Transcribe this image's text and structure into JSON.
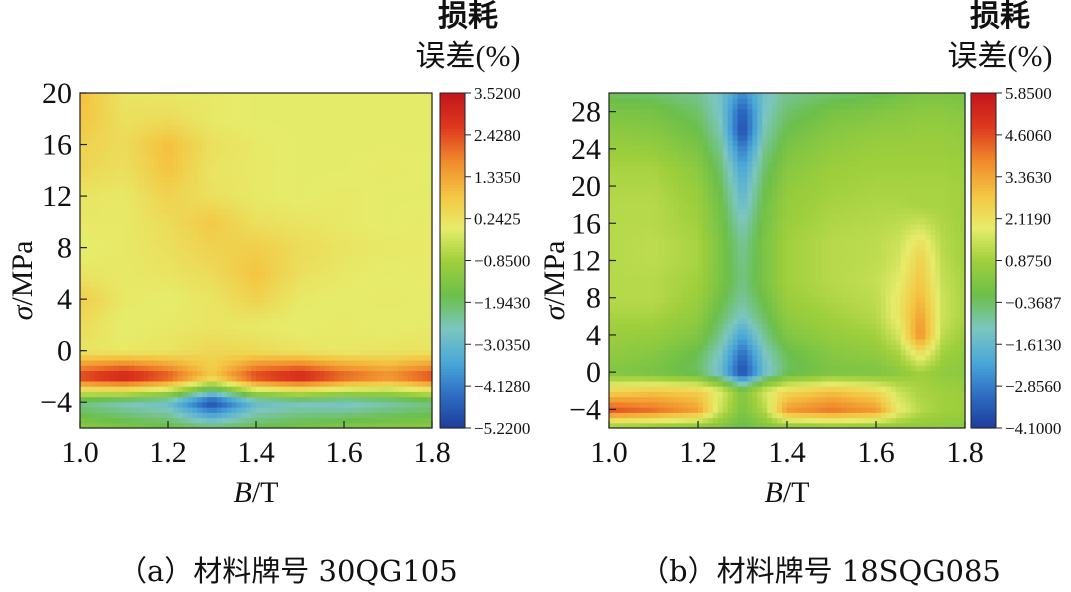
{
  "chart_data": [
    {
      "type": "heatmap",
      "title": "",
      "xlabel": "B/T",
      "ylabel": "σ/MPa",
      "xlim": [
        1.0,
        1.8
      ],
      "ylim": [
        -6,
        20
      ],
      "x_ticks": [
        "1.0",
        "1.2",
        "1.4",
        "1.6",
        "1.8"
      ],
      "y_ticks": [
        "20",
        "16",
        "12",
        "8",
        "4",
        "0",
        "−4"
      ],
      "colorbar": {
        "title_line1": "损耗",
        "title_line2": "误差(%)",
        "ticks": [
          "3.5200",
          "2.4280",
          "1.3350",
          "0.2425",
          "−0.8500",
          "−1.9430",
          "−3.0350",
          "−4.1280",
          "−5.2200"
        ],
        "range": [
          -5.22,
          3.52
        ]
      },
      "x": [
        1.0,
        1.1,
        1.2,
        1.3,
        1.4,
        1.5,
        1.6,
        1.7,
        1.8
      ],
      "y": [
        -6,
        -4,
        -2,
        0,
        2,
        4,
        6,
        8,
        10,
        12,
        14,
        16,
        18,
        20
      ],
      "z": [
        [
          -1.2,
          -1.4,
          -1.6,
          -1.9,
          -1.7,
          -1.5,
          -1.3,
          -1.2,
          -1.2
        ],
        [
          -2.2,
          -2.6,
          -2.9,
          -5.0,
          -3.0,
          -2.7,
          -2.8,
          -2.5,
          -2.2
        ],
        [
          2.7,
          3.4,
          2.5,
          0.8,
          2.7,
          3.3,
          2.4,
          1.8,
          2.6
        ],
        [
          0.2,
          0.1,
          0.2,
          0.5,
          0.4,
          0.2,
          0.1,
          0.2,
          0.2
        ],
        [
          0.4,
          0.0,
          0.1,
          0.2,
          0.1,
          0.0,
          0.1,
          0.0,
          0.1
        ],
        [
          0.7,
          0.1,
          0.0,
          0.2,
          0.6,
          0.1,
          0.0,
          0.1,
          0.0
        ],
        [
          0.2,
          0.1,
          0.2,
          0.4,
          0.9,
          0.3,
          0.1,
          0.0,
          0.1
        ],
        [
          0.0,
          0.1,
          0.3,
          0.6,
          0.7,
          0.4,
          0.2,
          0.1,
          0.1
        ],
        [
          0.1,
          0.1,
          0.4,
          0.8,
          0.3,
          0.2,
          0.1,
          0.0,
          0.1
        ],
        [
          0.2,
          0.1,
          0.6,
          0.3,
          0.1,
          0.0,
          0.1,
          0.0,
          0.0
        ],
        [
          0.5,
          0.3,
          0.9,
          0.2,
          0.1,
          0.0,
          0.0,
          0.1,
          0.0
        ],
        [
          0.6,
          0.4,
          1.0,
          0.3,
          0.1,
          0.0,
          0.0,
          0.0,
          0.0
        ],
        [
          0.9,
          0.3,
          0.4,
          0.1,
          0.0,
          0.0,
          0.0,
          0.0,
          0.0
        ],
        [
          1.0,
          0.2,
          0.1,
          0.1,
          0.0,
          0.0,
          0.0,
          0.0,
          0.0
        ]
      ]
    },
    {
      "type": "heatmap",
      "title": "",
      "xlabel": "B/T",
      "ylabel": "σ/MPa",
      "xlim": [
        1.0,
        1.8
      ],
      "ylim": [
        -6,
        30
      ],
      "x_ticks": [
        "1.0",
        "1.2",
        "1.4",
        "1.6",
        "1.8"
      ],
      "y_ticks": [
        "28",
        "24",
        "20",
        "16",
        "12",
        "8",
        "4",
        "0",
        "−4"
      ],
      "colorbar": {
        "title_line1": "损耗",
        "title_line2": "误差(%)",
        "ticks": [
          "5.8500",
          "4.6060",
          "3.3630",
          "2.1190",
          "0.8750",
          "−0.3687",
          "−1.6130",
          "−2.8560",
          "−4.1000"
        ],
        "range": [
          -4.1,
          5.85
        ]
      },
      "x": [
        1.0,
        1.1,
        1.2,
        1.25,
        1.3,
        1.35,
        1.4,
        1.5,
        1.6,
        1.65,
        1.7,
        1.75,
        1.8
      ],
      "y": [
        -6,
        -4,
        -2,
        0,
        2,
        4,
        6,
        8,
        10,
        12,
        14,
        16,
        18,
        20,
        22,
        24,
        26,
        28,
        30
      ],
      "z": [
        [
          0.5,
          0.4,
          0.3,
          0.2,
          -0.2,
          0.2,
          0.3,
          0.4,
          0.4,
          0.5,
          0.5,
          0.5,
          0.5
        ],
        [
          4.6,
          4.2,
          3.5,
          1.5,
          0.2,
          1.2,
          3.6,
          4.1,
          3.6,
          2.0,
          1.2,
          0.9,
          0.8
        ],
        [
          2.5,
          2.8,
          2.6,
          1.8,
          0.3,
          1.6,
          2.4,
          2.9,
          2.4,
          1.5,
          1.0,
          0.9,
          0.8
        ],
        [
          0.3,
          0.1,
          -0.3,
          -1.5,
          -3.8,
          -1.5,
          -0.3,
          0.2,
          0.2,
          0.5,
          0.9,
          0.6,
          0.5
        ],
        [
          0.6,
          0.4,
          -0.2,
          -1.2,
          -3.2,
          -1.2,
          -0.2,
          0.4,
          0.6,
          1.0,
          2.2,
          0.9,
          0.6
        ],
        [
          0.8,
          0.7,
          0.3,
          -0.7,
          -2.2,
          -0.7,
          0.3,
          0.7,
          0.9,
          1.6,
          3.8,
          1.3,
          0.8
        ],
        [
          1.0,
          1.0,
          0.6,
          -0.3,
          -1.2,
          -0.3,
          0.6,
          0.9,
          1.2,
          2.0,
          3.5,
          1.5,
          1.0
        ],
        [
          1.2,
          1.2,
          0.8,
          0.0,
          -0.8,
          0.0,
          0.8,
          1.1,
          1.3,
          2.0,
          3.1,
          1.5,
          1.0
        ],
        [
          1.2,
          1.2,
          0.9,
          0.2,
          -0.6,
          0.2,
          0.9,
          1.2,
          1.4,
          1.8,
          2.8,
          1.4,
          1.0
        ],
        [
          1.2,
          1.3,
          1.0,
          0.2,
          -0.7,
          0.2,
          0.9,
          1.2,
          1.3,
          1.6,
          2.6,
          1.3,
          0.9
        ],
        [
          1.2,
          1.3,
          1.0,
          0.2,
          -0.8,
          0.2,
          0.9,
          1.2,
          1.3,
          1.5,
          2.2,
          1.2,
          0.9
        ],
        [
          1.2,
          1.2,
          0.9,
          0.1,
          -1.1,
          0.1,
          0.8,
          1.1,
          1.2,
          1.3,
          1.5,
          1.1,
          0.9
        ],
        [
          1.2,
          1.2,
          0.8,
          0.0,
          -1.5,
          0.0,
          0.7,
          1.0,
          1.1,
          1.1,
          1.0,
          1.0,
          0.9
        ],
        [
          1.1,
          1.1,
          0.7,
          -0.2,
          -1.8,
          -0.2,
          0.6,
          0.9,
          1.0,
          1.0,
          1.0,
          1.0,
          0.9
        ],
        [
          1.0,
          1.0,
          0.5,
          -0.4,
          -2.2,
          -0.4,
          0.4,
          0.8,
          0.9,
          0.9,
          0.9,
          0.9,
          0.8
        ],
        [
          0.8,
          0.7,
          0.2,
          -0.7,
          -2.9,
          -0.7,
          0.2,
          0.6,
          0.8,
          0.8,
          0.8,
          0.8,
          0.7
        ],
        [
          0.5,
          0.4,
          -0.1,
          -1.0,
          -3.8,
          -1.0,
          -0.1,
          0.4,
          0.6,
          0.6,
          0.7,
          0.7,
          0.6
        ],
        [
          0.2,
          0.1,
          -0.4,
          -1.2,
          -3.5,
          -1.2,
          -0.4,
          0.1,
          0.3,
          0.4,
          0.5,
          0.5,
          0.4
        ],
        [
          -0.3,
          -0.4,
          -0.7,
          -1.3,
          -2.6,
          -1.3,
          -0.7,
          -0.4,
          -0.2,
          0.0,
          0.2,
          0.2,
          0.1
        ]
      ]
    }
  ],
  "captions": {
    "a": "（a）材料牌号 30QG105",
    "b": "（b）材料牌号 18SQG085"
  },
  "colormap": [
    "#1c3b9a",
    "#2e6cc2",
    "#4aa8d8",
    "#7cc6c0",
    "#6cbf4a",
    "#9fcf3c",
    "#e6ec6a",
    "#f4c542",
    "#f08a2c",
    "#de3a1e",
    "#c4161c"
  ]
}
